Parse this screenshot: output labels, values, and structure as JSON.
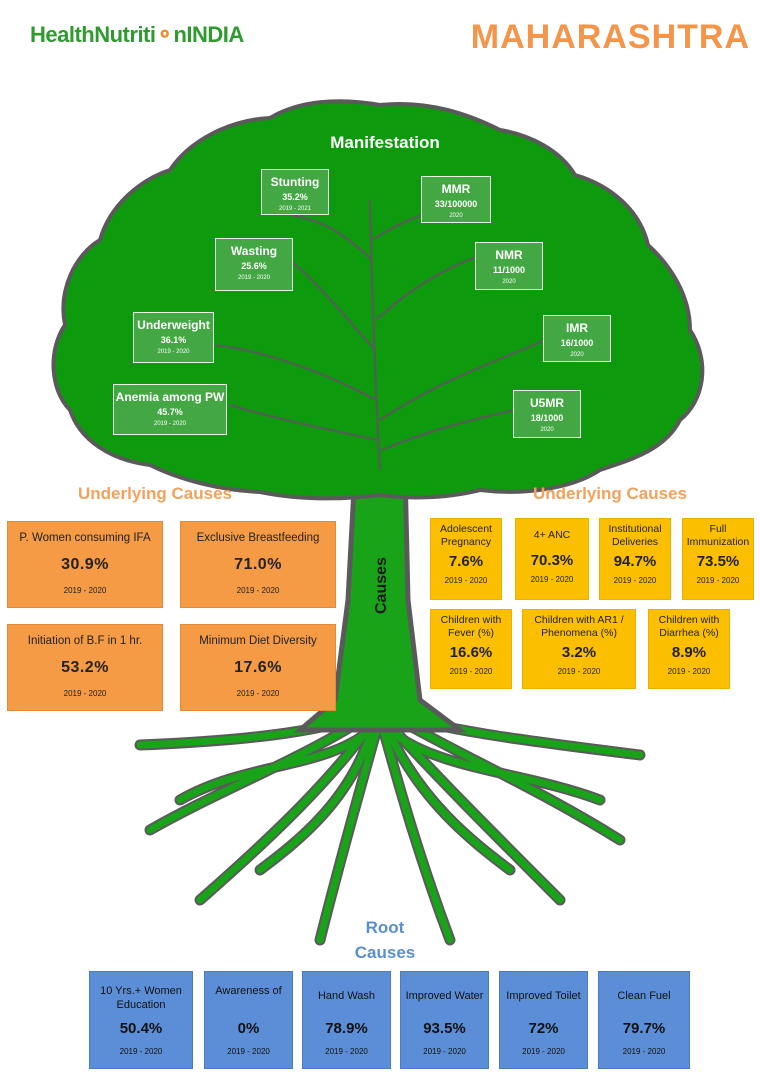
{
  "header": {
    "logo_part1": "HealthNutriti",
    "logo_part2": "nINDIA",
    "state": "MAHARASHTRA"
  },
  "tree": {
    "title": "Manifestation",
    "left": [
      {
        "label": "Stunting",
        "value": "35.2%",
        "year": "2019 - 2021"
      },
      {
        "label": "Wasting",
        "value": "25.6%",
        "year": "2019 - 2020"
      },
      {
        "label": "Underweight",
        "value": "36.1%",
        "year": "2019 - 2020"
      },
      {
        "label": "Anemia among PW",
        "value": "45.7%",
        "year": "2019 - 2020"
      }
    ],
    "right": [
      {
        "label": "MMR",
        "value": "33/100000",
        "year": "2020"
      },
      {
        "label": "NMR",
        "value": "11/1000",
        "year": "2020"
      },
      {
        "label": "IMR",
        "value": "16/1000",
        "year": "2020"
      },
      {
        "label": "U5MR",
        "value": "18/1000",
        "year": "2020"
      }
    ]
  },
  "underlying_left": {
    "title": "Underlying Causes",
    "items": [
      {
        "label": "P. Women consuming IFA",
        "value": "30.9%",
        "year": "2019 - 2020"
      },
      {
        "label": "Exclusive Breastfeeding",
        "value": "71.0%",
        "year": "2019 - 2020"
      },
      {
        "label": "Initiation of B.F in 1 hr.",
        "value": "53.2%",
        "year": "2019 - 2020"
      },
      {
        "label": "Minimum Diet Diversity",
        "value": "17.6%",
        "year": "2019 - 2020"
      }
    ]
  },
  "underlying_right": {
    "title": "Underlying Causes",
    "row1": [
      {
        "label": "Adolescent Pregnancy",
        "value": "7.6%",
        "year": "2019 - 2020"
      },
      {
        "label": "4+ ANC",
        "value": "70.3%",
        "year": "2019 - 2020"
      },
      {
        "label": "Institutional Deliveries",
        "value": "94.7%",
        "year": "2019 - 2020"
      },
      {
        "label": "Full Immunization",
        "value": "73.5%",
        "year": "2019 - 2020"
      }
    ],
    "row2": [
      {
        "label": "Children with Fever (%)",
        "value": "16.6%",
        "year": "2019 - 2020"
      },
      {
        "label": "Children with AR1 / Phenomena (%)",
        "value": "3.2%",
        "year": "2019 - 2020"
      },
      {
        "label": "Children with Diarrhea (%)",
        "value": "8.9%",
        "year": "2019 - 2020"
      }
    ]
  },
  "trunk_label": "Causes",
  "root": {
    "title_line1": "Root",
    "title_line2": "Causes",
    "items": [
      {
        "label": "10 Yrs.+ Women Education",
        "value": "50.4%",
        "year": "2019 - 2020"
      },
      {
        "label": "Awareness of",
        "value": "0%",
        "year": "2019 - 2020"
      },
      {
        "label": "Hand Wash",
        "value": "78.9%",
        "year": "2019 - 2020"
      },
      {
        "label": "Improved Water",
        "value": "93.5%",
        "year": "2019 - 2020"
      },
      {
        "label": "Improved Toilet",
        "value": "72%",
        "year": "2019 - 2020"
      },
      {
        "label": "Clean Fuel",
        "value": "79.7%",
        "year": "2019 - 2020"
      }
    ]
  },
  "colors": {
    "canopy": "#0d9a0d",
    "outline": "#5a5a5a",
    "manifest_box": "#43a843",
    "underlying_left": "#f59a45",
    "underlying_right": "#fcbf00",
    "root_box": "#5b8ed6",
    "state_title": "#f4954a",
    "root_title": "#5a8fd0"
  }
}
